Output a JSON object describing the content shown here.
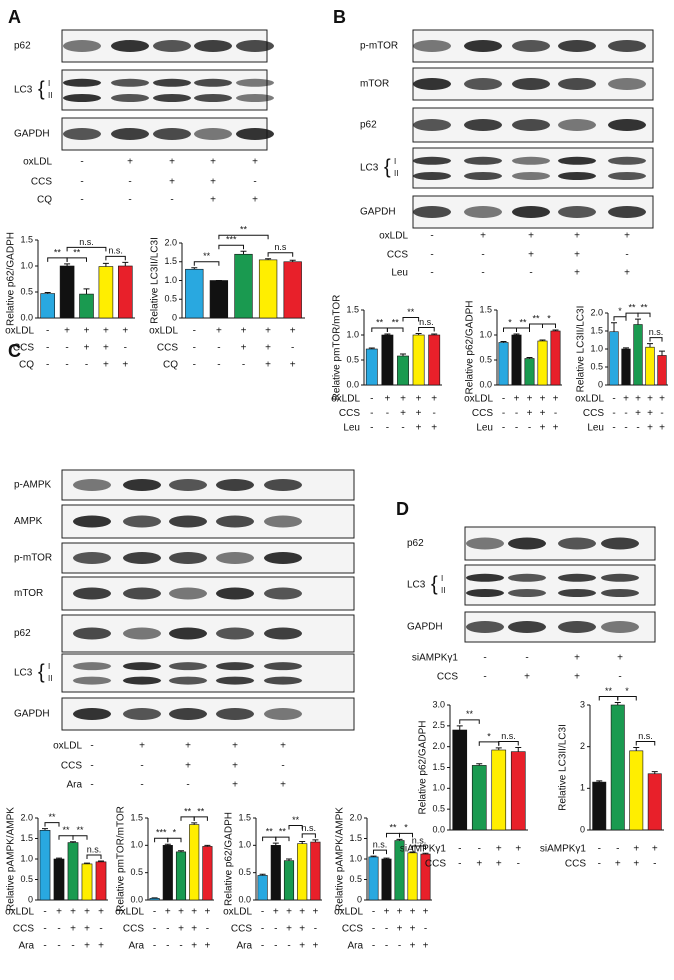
{
  "panels": [
    {
      "label": "A",
      "blots": [
        {
          "label": "p62"
        },
        {
          "label": "LC3",
          "bands": [
            "I",
            "II"
          ]
        },
        {
          "label": "GAPDH"
        }
      ],
      "conditions": [
        {
          "name": "oxLDL",
          "signs": [
            "-",
            "+",
            "+",
            "+",
            "+"
          ]
        },
        {
          "name": "CCS",
          "signs": [
            "-",
            "-",
            "+",
            "+",
            "-"
          ]
        },
        {
          "name": "CQ",
          "signs": [
            "-",
            "-",
            "-",
            "+",
            "+"
          ]
        }
      ]
    },
    {
      "label": "B",
      "blots": [
        {
          "label": "p-mTOR"
        },
        {
          "label": "mTOR"
        },
        {
          "label": "p62"
        },
        {
          "label": "LC3",
          "bands": [
            "I",
            "II"
          ]
        },
        {
          "label": "GAPDH"
        }
      ],
      "conditions": [
        {
          "name": "oxLDL",
          "signs": [
            "-",
            "+",
            "+",
            "+",
            "+"
          ]
        },
        {
          "name": "CCS",
          "signs": [
            "-",
            "-",
            "+",
            "+",
            "-"
          ]
        },
        {
          "name": "Leu",
          "signs": [
            "-",
            "-",
            "-",
            "+",
            "+"
          ]
        }
      ]
    },
    {
      "label": "C",
      "blots": [
        {
          "label": "p-AMPK"
        },
        {
          "label": "AMPK"
        },
        {
          "label": "p-mTOR"
        },
        {
          "label": "mTOR"
        },
        {
          "label": "p62"
        },
        {
          "label": "LC3",
          "bands": [
            "I",
            "II"
          ]
        },
        {
          "label": "GAPDH"
        }
      ],
      "conditions": [
        {
          "name": "oxLDL",
          "signs": [
            "-",
            "+",
            "+",
            "+",
            "+"
          ]
        },
        {
          "name": "CCS",
          "signs": [
            "-",
            "-",
            "+",
            "+",
            "-"
          ]
        },
        {
          "name": "Ara",
          "signs": [
            "-",
            "-",
            "-",
            "+",
            "+"
          ]
        }
      ]
    },
    {
      "label": "D",
      "blots": [
        {
          "label": "p62"
        },
        {
          "label": "LC3",
          "bands": [
            "I",
            "II"
          ]
        },
        {
          "label": "GAPDH"
        }
      ],
      "conditions": [
        {
          "name": "siAMPKγ1",
          "signs": [
            "-",
            "-",
            "+",
            "+"
          ]
        },
        {
          "name": "CCS",
          "signs": [
            "-",
            "+",
            "+",
            "-"
          ]
        }
      ]
    }
  ],
  "chart_data": [
    {
      "type": "bar",
      "ylabel": "Relative p62/GADPH",
      "ylim": [
        0,
        1.5
      ],
      "yticks": [
        {
          "value": 0,
          "label": "0.0"
        },
        0.5,
        {
          "value": 1,
          "label": "1.0"
        },
        1.5
      ],
      "values": [
        0.47,
        1.0,
        0.46,
        0.99,
        1.0
      ],
      "errors": [
        0.02,
        0.04,
        0.1,
        0.06,
        0.07
      ],
      "colors": [
        "#29a8e0",
        "#111111",
        "#1a9a50",
        "#ffee00",
        "#e8202a"
      ],
      "annotations": [
        "**",
        "**",
        "n.s.",
        "n.s."
      ],
      "conditions": [
        {
          "name": "oxLDL",
          "signs": [
            "-",
            "+",
            "+",
            "+",
            "+"
          ]
        },
        {
          "name": "CCS",
          "signs": [
            "-",
            "-",
            "+",
            "+",
            "-"
          ]
        },
        {
          "name": "CQ",
          "signs": [
            "-",
            "-",
            "-",
            "+",
            "+"
          ]
        }
      ]
    },
    {
      "type": "bar",
      "ylabel": "Relative LC3II/LC3I",
      "ylim": [
        0,
        2
      ],
      "yticks": [
        0,
        0.5,
        {
          "value": 1,
          "label": "1.0"
        },
        1.5,
        {
          "value": 2,
          "label": "2.0"
        }
      ],
      "values": [
        1.3,
        1.0,
        1.7,
        1.55,
        1.5
      ],
      "errors": [
        0.04,
        0.0,
        0.08,
        0.03,
        0.04
      ],
      "colors": [
        "#29a8e0",
        "#111111",
        "#1a9a50",
        "#ffee00",
        "#e8202a"
      ],
      "annotations": [
        "**",
        "***",
        "**",
        "n.s"
      ],
      "conditions": [
        {
          "name": "oxLDL",
          "signs": [
            "-",
            "+",
            "+",
            "+",
            "+"
          ]
        },
        {
          "name": "CCS",
          "signs": [
            "-",
            "-",
            "+",
            "+",
            "-"
          ]
        },
        {
          "name": "CQ",
          "signs": [
            "-",
            "-",
            "-",
            "+",
            "+"
          ]
        }
      ]
    },
    {
      "type": "bar",
      "ylabel": "Relative pmTOR/mTOR",
      "ylim": [
        0,
        1.5
      ],
      "yticks": [
        {
          "value": 0,
          "label": "0.0"
        },
        0.5,
        {
          "value": 1,
          "label": "1.0"
        },
        1.5
      ],
      "values": [
        0.72,
        1.0,
        0.58,
        1.0,
        1.0
      ],
      "errors": [
        0.02,
        0.02,
        0.04,
        0.03,
        0.02
      ],
      "colors": [
        "#29a8e0",
        "#111111",
        "#1a9a50",
        "#ffee00",
        "#e8202a"
      ],
      "annotations": [
        "**",
        "**",
        "**",
        "n.s."
      ],
      "conditions": [
        {
          "name": "oxLDL",
          "signs": [
            "-",
            "+",
            "+",
            "+",
            "+"
          ]
        },
        {
          "name": "CCS",
          "signs": [
            "-",
            "-",
            "+",
            "+",
            "-"
          ]
        },
        {
          "name": "Leu",
          "signs": [
            "-",
            "-",
            "-",
            "+",
            "+"
          ]
        }
      ]
    },
    {
      "type": "bar",
      "ylabel": "Relative p62/GADPH",
      "ylim": [
        0,
        1.5
      ],
      "yticks": [
        {
          "value": 0,
          "label": "0.0"
        },
        0.5,
        {
          "value": 1,
          "label": "1.0"
        },
        1.5
      ],
      "values": [
        0.85,
        1.0,
        0.53,
        0.88,
        1.08
      ],
      "errors": [
        0.02,
        0.02,
        0.02,
        0.02,
        0.02
      ],
      "colors": [
        "#29a8e0",
        "#111111",
        "#1a9a50",
        "#ffee00",
        "#e8202a"
      ],
      "annotations": [
        "*",
        "**",
        "**",
        "*"
      ],
      "conditions": [
        {
          "name": "oxLDL",
          "signs": [
            "-",
            "+",
            "+",
            "+",
            "+"
          ]
        },
        {
          "name": "CCS",
          "signs": [
            "-",
            "-",
            "+",
            "+",
            "-"
          ]
        },
        {
          "name": "Leu",
          "signs": [
            "-",
            "-",
            "-",
            "+",
            "+"
          ]
        }
      ]
    },
    {
      "type": "bar",
      "ylabel": "Relative LC3II/LC3I",
      "ylim": [
        0,
        2
      ],
      "yticks": [
        0,
        0.5,
        {
          "value": 1,
          "label": "1.0"
        },
        1.5,
        {
          "value": 2,
          "label": "2.0"
        }
      ],
      "values": [
        1.48,
        1.0,
        1.68,
        1.05,
        0.82
      ],
      "errors": [
        0.25,
        0.03,
        0.15,
        0.1,
        0.12
      ],
      "colors": [
        "#29a8e0",
        "#111111",
        "#1a9a50",
        "#ffee00",
        "#e8202a"
      ],
      "annotations": [
        "*",
        "**",
        "**",
        "n.s."
      ],
      "conditions": [
        {
          "name": "oxLDL",
          "signs": [
            "-",
            "+",
            "+",
            "+",
            "+"
          ]
        },
        {
          "name": "CCS",
          "signs": [
            "-",
            "-",
            "+",
            "+",
            "-"
          ]
        },
        {
          "name": "Leu",
          "signs": [
            "-",
            "-",
            "-",
            "+",
            "+"
          ]
        }
      ]
    },
    {
      "type": "bar",
      "ylabel": "Relative pAMPK/AMPK",
      "ylim": [
        0,
        2
      ],
      "yticks": [
        0,
        0.5,
        {
          "value": 1,
          "label": "1.0"
        },
        1.5,
        {
          "value": 2,
          "label": "2.0"
        }
      ],
      "values": [
        1.7,
        1.0,
        1.4,
        0.88,
        0.93
      ],
      "errors": [
        0.04,
        0.02,
        0.02,
        0.02,
        0.02
      ],
      "colors": [
        "#29a8e0",
        "#111111",
        "#1a9a50",
        "#ffee00",
        "#e8202a"
      ],
      "annotations": [
        "**",
        "**",
        "**",
        "n.s."
      ],
      "conditions": [
        {
          "name": "oxLDL",
          "signs": [
            "-",
            "+",
            "+",
            "+",
            "+"
          ]
        },
        {
          "name": "CCS",
          "signs": [
            "-",
            "-",
            "+",
            "+",
            "-"
          ]
        },
        {
          "name": "Ara",
          "signs": [
            "-",
            "-",
            "-",
            "+",
            "+"
          ]
        }
      ]
    },
    {
      "type": "bar",
      "ylabel": "Relative pmTOR/mTOR",
      "ylim": [
        0,
        1.5
      ],
      "yticks": [
        {
          "value": 0,
          "label": "0.0"
        },
        0.5,
        {
          "value": 1,
          "label": "1.0"
        },
        1.5
      ],
      "values": [
        0.03,
        1.0,
        0.88,
        1.38,
        0.98
      ],
      "errors": [
        0.01,
        0.02,
        0.02,
        0.03,
        0.02
      ],
      "colors": [
        "#29a8e0",
        "#111111",
        "#1a9a50",
        "#ffee00",
        "#e8202a"
      ],
      "annotations": [
        "***",
        "*",
        "**",
        "**"
      ],
      "conditions": [
        {
          "name": "oxLDL",
          "signs": [
            "-",
            "+",
            "+",
            "+",
            "+"
          ]
        },
        {
          "name": "CCS",
          "signs": [
            "-",
            "-",
            "+",
            "+",
            "-"
          ]
        },
        {
          "name": "Ara",
          "signs": [
            "-",
            "-",
            "-",
            "+",
            "+"
          ]
        }
      ]
    },
    {
      "type": "bar",
      "ylabel": "Relative p62/GADPH",
      "ylim": [
        0,
        1.5
      ],
      "yticks": [
        {
          "value": 0,
          "label": "0.0"
        },
        0.5,
        {
          "value": 1,
          "label": "1.0"
        },
        1.5
      ],
      "values": [
        0.45,
        1.0,
        0.72,
        1.03,
        1.06
      ],
      "errors": [
        0.02,
        0.04,
        0.03,
        0.04,
        0.04
      ],
      "colors": [
        "#29a8e0",
        "#111111",
        "#1a9a50",
        "#ffee00",
        "#e8202a"
      ],
      "annotations": [
        "**",
        "**",
        "**",
        "n.s."
      ],
      "conditions": [
        {
          "name": "oxLDL",
          "signs": [
            "-",
            "+",
            "+",
            "+",
            "+"
          ]
        },
        {
          "name": "CCS",
          "signs": [
            "-",
            "-",
            "+",
            "+",
            "-"
          ]
        },
        {
          "name": "Ara",
          "signs": [
            "-",
            "-",
            "-",
            "+",
            "+"
          ]
        }
      ]
    },
    {
      "type": "bar",
      "ylabel": "Relative pAMPK/AMPK",
      "ylim": [
        0,
        2
      ],
      "yticks": [
        0,
        0.5,
        {
          "value": 1,
          "label": "1.0"
        },
        1.5,
        {
          "value": 2,
          "label": "2.0"
        }
      ],
      "values": [
        1.05,
        1.0,
        1.45,
        1.15,
        1.12
      ],
      "errors": [
        0.02,
        0.02,
        0.03,
        0.02,
        0.02
      ],
      "colors": [
        "#29a8e0",
        "#111111",
        "#1a9a50",
        "#ffee00",
        "#e8202a"
      ],
      "annotations": [
        "n.s.",
        "**",
        "*",
        "n.s."
      ],
      "conditions": [
        {
          "name": "oxLDL",
          "signs": [
            "-",
            "+",
            "+",
            "+",
            "+"
          ]
        },
        {
          "name": "CCS",
          "signs": [
            "-",
            "-",
            "+",
            "+",
            "-"
          ]
        },
        {
          "name": "Ara",
          "signs": [
            "-",
            "-",
            "-",
            "+",
            "+"
          ]
        }
      ]
    },
    {
      "type": "bar",
      "ylabel": "Relative p62/GADPH",
      "ylim": [
        0,
        3
      ],
      "yticks": [
        {
          "value": 0,
          "label": "0.0"
        },
        0.5,
        {
          "value": 1,
          "label": "1.0"
        },
        1.5,
        {
          "value": 2,
          "label": "2.0"
        },
        2.5,
        {
          "value": 3,
          "label": "3.0"
        }
      ],
      "values": [
        2.4,
        1.55,
        1.92,
        1.88
      ],
      "errors": [
        0.1,
        0.04,
        0.05,
        0.1
      ],
      "colors": [
        "#111111",
        "#1a9a50",
        "#ffee00",
        "#e8202a"
      ],
      "annotations": [
        "**",
        "*",
        "n.s."
      ],
      "conditions": [
        {
          "name": "siAMPKγ1",
          "signs": [
            "-",
            "-",
            "+",
            "+"
          ]
        },
        {
          "name": "CCS",
          "signs": [
            "-",
            "+",
            "+",
            "-"
          ]
        }
      ]
    },
    {
      "type": "bar",
      "ylabel": "Relative LC3II/LC3I",
      "ylim": [
        0,
        3
      ],
      "yticks": [
        0,
        1,
        2,
        3
      ],
      "values": [
        1.15,
        3.0,
        1.9,
        1.35
      ],
      "errors": [
        0.03,
        0.06,
        0.08,
        0.05
      ],
      "colors": [
        "#111111",
        "#1a9a50",
        "#ffee00",
        "#e8202a"
      ],
      "annotations": [
        "**",
        "*",
        "n.s."
      ],
      "conditions": [
        {
          "name": "siAMPKγ1",
          "signs": [
            "-",
            "-",
            "+",
            "+"
          ]
        },
        {
          "name": "CCS",
          "signs": [
            "-",
            "+",
            "+",
            "-"
          ]
        }
      ]
    }
  ]
}
